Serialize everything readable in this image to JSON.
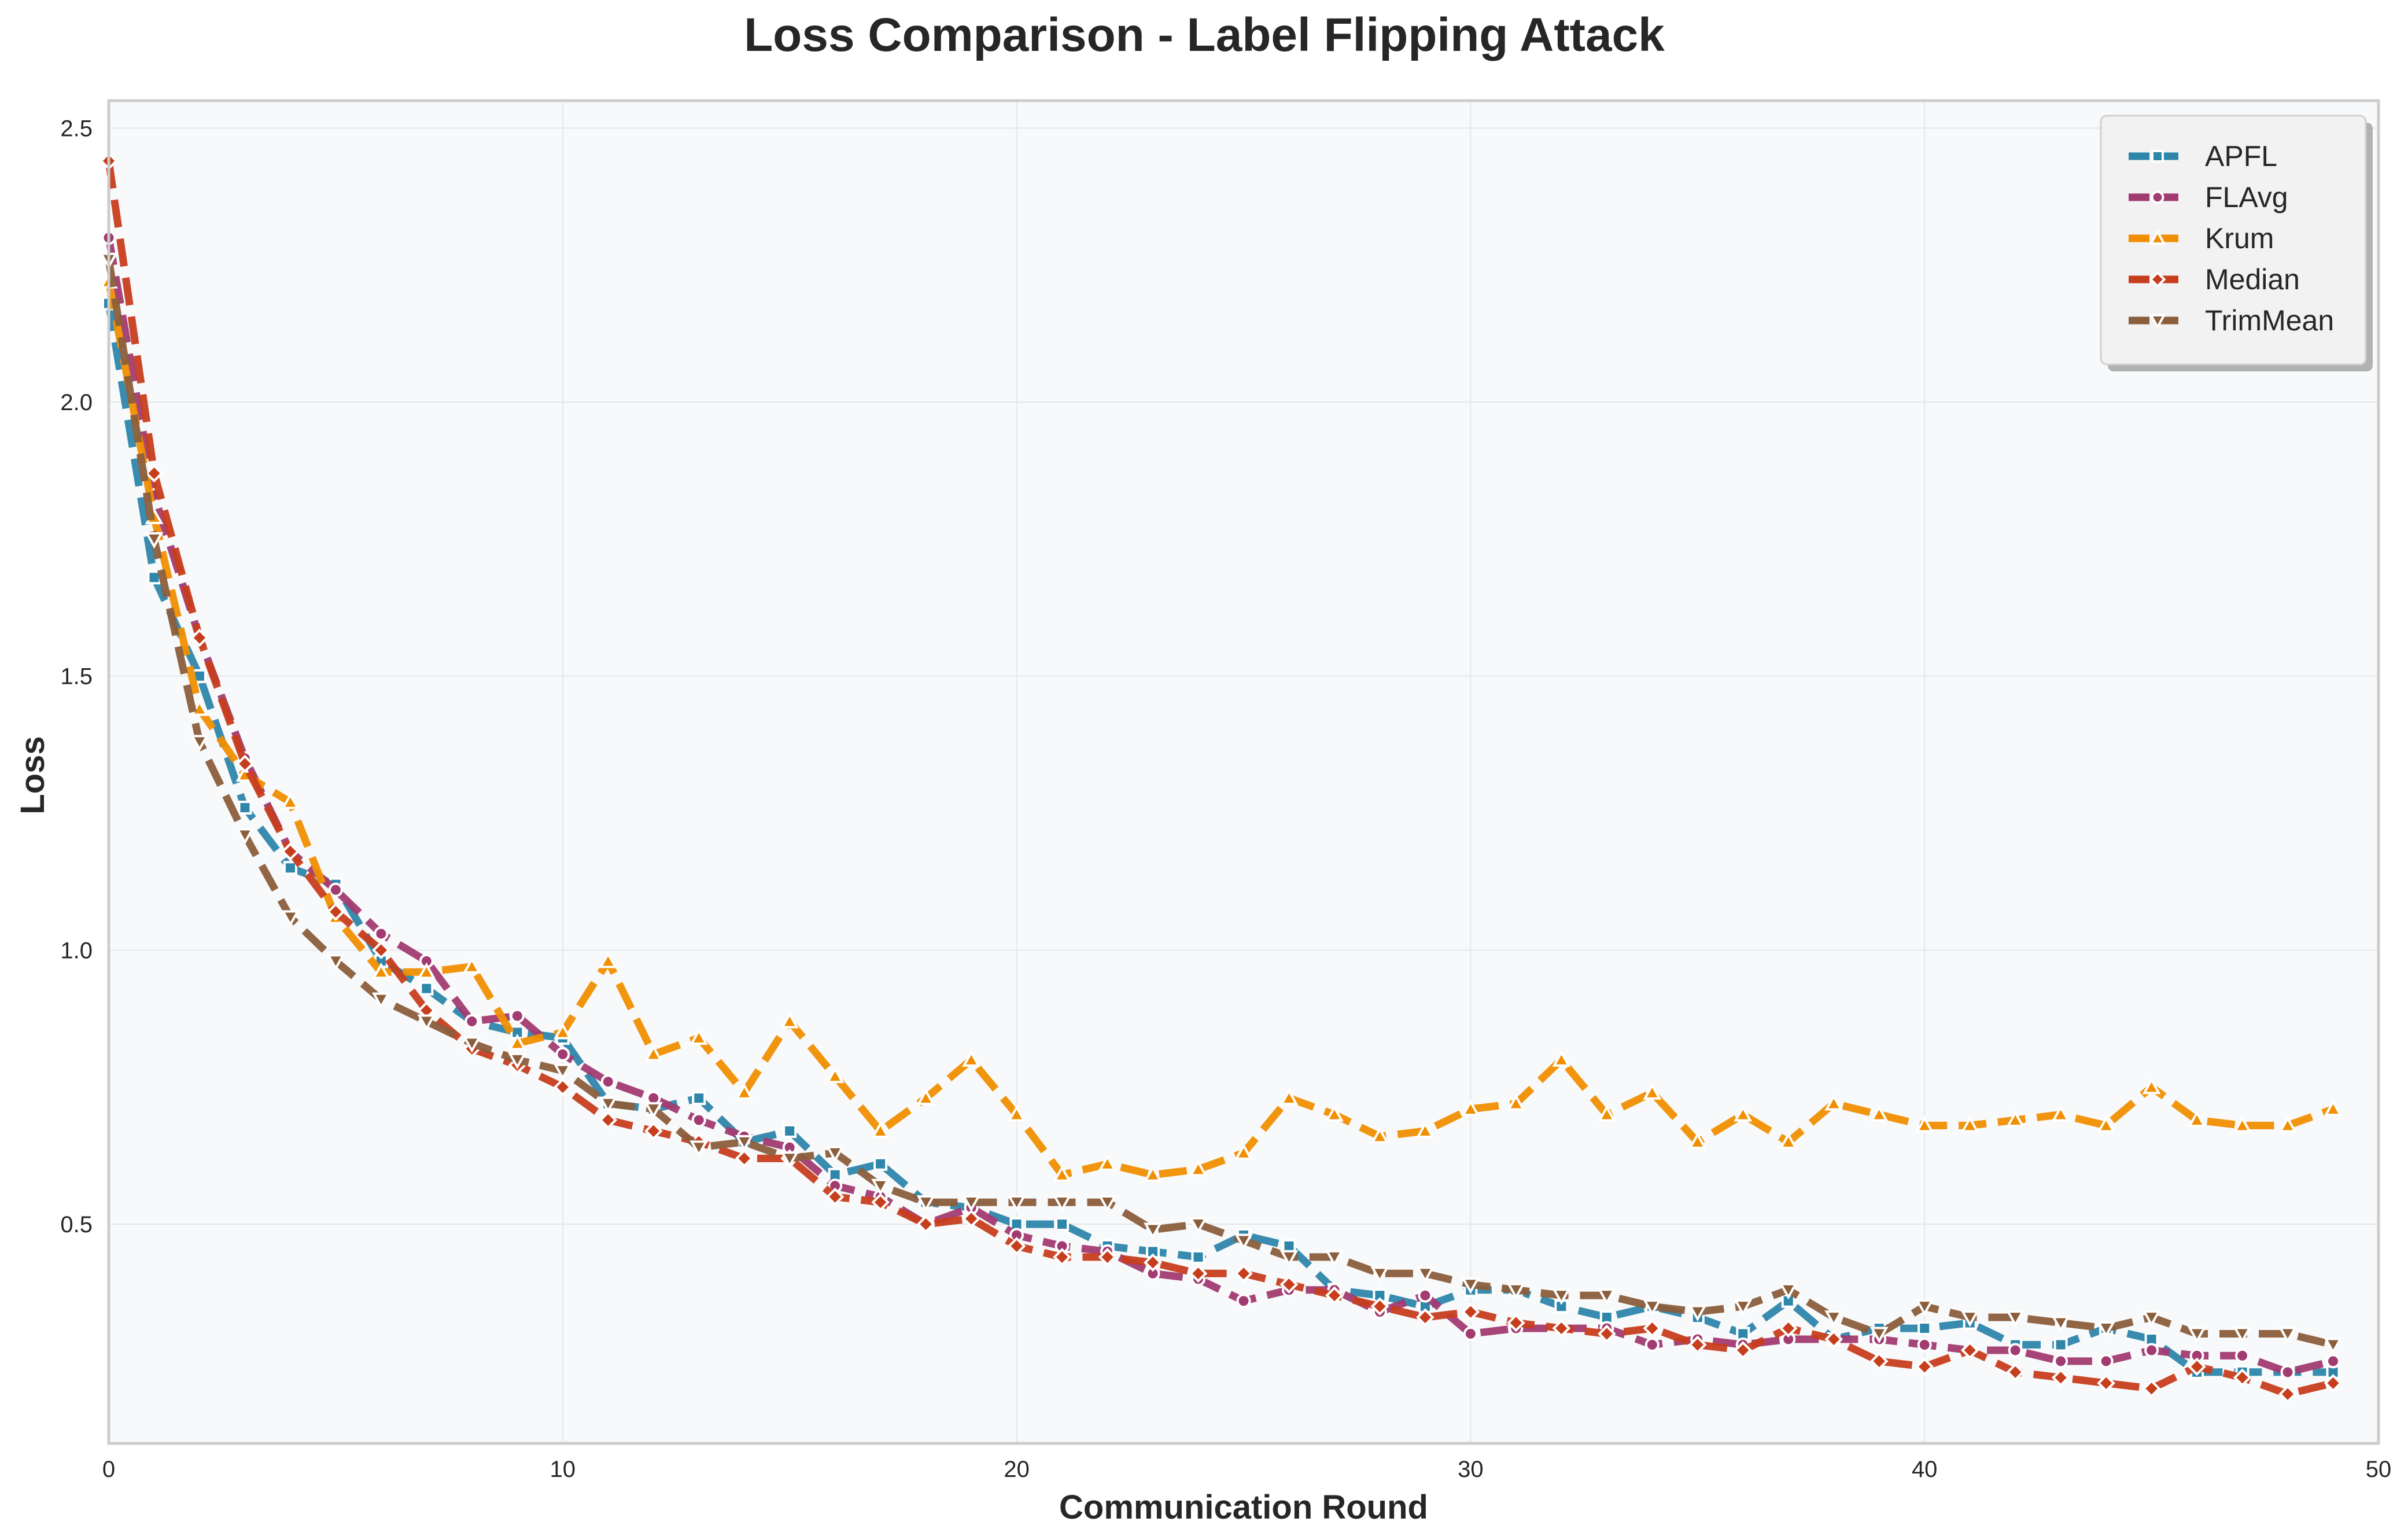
{
  "chart_data": {
    "type": "line",
    "title": "Loss Comparison - Label Flipping Attack",
    "xlabel": "Communication Round",
    "ylabel": "Loss",
    "xlim": [
      0,
      50
    ],
    "ylim": [
      0.1,
      2.55
    ],
    "x_ticks": [
      0,
      10,
      20,
      30,
      40,
      50
    ],
    "y_ticks": [
      0.5,
      1.0,
      1.5,
      2.0,
      2.5
    ],
    "x_tick_labels": [
      "0",
      "10",
      "20",
      "30",
      "40",
      "50"
    ],
    "y_tick_labels": [
      "0.5",
      "1.0",
      "1.5",
      "2.0",
      "2.5"
    ],
    "grid": true,
    "legend_position": "top-right",
    "x": [
      0,
      1,
      2,
      3,
      4,
      5,
      6,
      7,
      8,
      9,
      10,
      11,
      12,
      13,
      14,
      15,
      16,
      17,
      18,
      19,
      20,
      21,
      22,
      23,
      24,
      25,
      26,
      27,
      28,
      29,
      30,
      31,
      32,
      33,
      34,
      35,
      36,
      37,
      38,
      39,
      40,
      41,
      42,
      43,
      44,
      45,
      46,
      47,
      48,
      49
    ],
    "series": [
      {
        "name": "APFL",
        "color": "#2E86AB",
        "marker": "square",
        "values": [
          2.18,
          1.68,
          1.5,
          1.26,
          1.15,
          1.12,
          0.98,
          0.93,
          0.87,
          0.85,
          0.84,
          0.72,
          0.71,
          0.73,
          0.65,
          0.67,
          0.59,
          0.61,
          0.54,
          0.53,
          0.5,
          0.5,
          0.46,
          0.45,
          0.44,
          0.48,
          0.46,
          0.38,
          0.37,
          0.35,
          0.38,
          0.38,
          0.35,
          0.33,
          0.35,
          0.33,
          0.3,
          0.36,
          0.29,
          0.31,
          0.31,
          0.32,
          0.28,
          0.28,
          0.31,
          0.29,
          0.23,
          0.23,
          0.23,
          0.23
        ]
      },
      {
        "name": "FLAvg",
        "color": "#A23B72",
        "marker": "circle",
        "values": [
          2.3,
          1.83,
          1.57,
          1.35,
          1.18,
          1.11,
          1.03,
          0.98,
          0.87,
          0.88,
          0.81,
          0.76,
          0.73,
          0.69,
          0.66,
          0.64,
          0.57,
          0.55,
          0.5,
          0.53,
          0.48,
          0.46,
          0.45,
          0.41,
          0.4,
          0.36,
          0.38,
          0.38,
          0.34,
          0.37,
          0.3,
          0.31,
          0.31,
          0.31,
          0.28,
          0.29,
          0.28,
          0.29,
          0.29,
          0.29,
          0.28,
          0.27,
          0.27,
          0.25,
          0.25,
          0.27,
          0.26,
          0.26,
          0.23,
          0.25
        ]
      },
      {
        "name": "Krum",
        "color": "#F18F01",
        "marker": "triangle-up",
        "values": [
          2.22,
          1.79,
          1.44,
          1.32,
          1.27,
          1.06,
          0.96,
          0.96,
          0.97,
          0.83,
          0.85,
          0.98,
          0.81,
          0.84,
          0.74,
          0.87,
          0.77,
          0.67,
          0.73,
          0.8,
          0.7,
          0.59,
          0.61,
          0.59,
          0.6,
          0.63,
          0.73,
          0.7,
          0.66,
          0.67,
          0.71,
          0.72,
          0.8,
          0.7,
          0.74,
          0.65,
          0.7,
          0.65,
          0.72,
          0.7,
          0.68,
          0.68,
          0.69,
          0.7,
          0.68,
          0.75,
          0.69,
          0.68,
          0.68,
          0.71
        ]
      },
      {
        "name": "Median",
        "color": "#C73E1D",
        "marker": "diamond",
        "values": [
          2.44,
          1.87,
          1.57,
          1.34,
          1.18,
          1.07,
          1.0,
          0.89,
          0.82,
          0.79,
          0.75,
          0.69,
          0.67,
          0.65,
          0.62,
          0.62,
          0.55,
          0.54,
          0.5,
          0.51,
          0.46,
          0.44,
          0.44,
          0.43,
          0.41,
          0.41,
          0.39,
          0.37,
          0.35,
          0.33,
          0.34,
          0.32,
          0.31,
          0.3,
          0.31,
          0.28,
          0.27,
          0.31,
          0.29,
          0.25,
          0.24,
          0.27,
          0.23,
          0.22,
          0.21,
          0.2,
          0.24,
          0.22,
          0.19,
          0.21
        ]
      },
      {
        "name": "TrimMean",
        "color": "#8B5E3C",
        "marker": "triangle-down",
        "values": [
          2.26,
          1.75,
          1.38,
          1.21,
          1.06,
          0.98,
          0.91,
          0.87,
          0.83,
          0.8,
          0.78,
          0.72,
          0.71,
          0.64,
          0.65,
          0.62,
          0.63,
          0.57,
          0.54,
          0.54,
          0.54,
          0.54,
          0.54,
          0.49,
          0.5,
          0.47,
          0.44,
          0.44,
          0.41,
          0.41,
          0.39,
          0.38,
          0.37,
          0.37,
          0.35,
          0.34,
          0.35,
          0.38,
          0.33,
          0.3,
          0.35,
          0.33,
          0.33,
          0.32,
          0.31,
          0.33,
          0.3,
          0.3,
          0.3,
          0.28
        ]
      }
    ]
  },
  "style": {
    "plot_background": "#F8F9FA",
    "plot_border": "#CCCCCC",
    "grid_color": "#E4E6E9",
    "text_color": "#262626",
    "marker_edge": "#FFFFFF",
    "legend_background": "#F2F2F2"
  }
}
